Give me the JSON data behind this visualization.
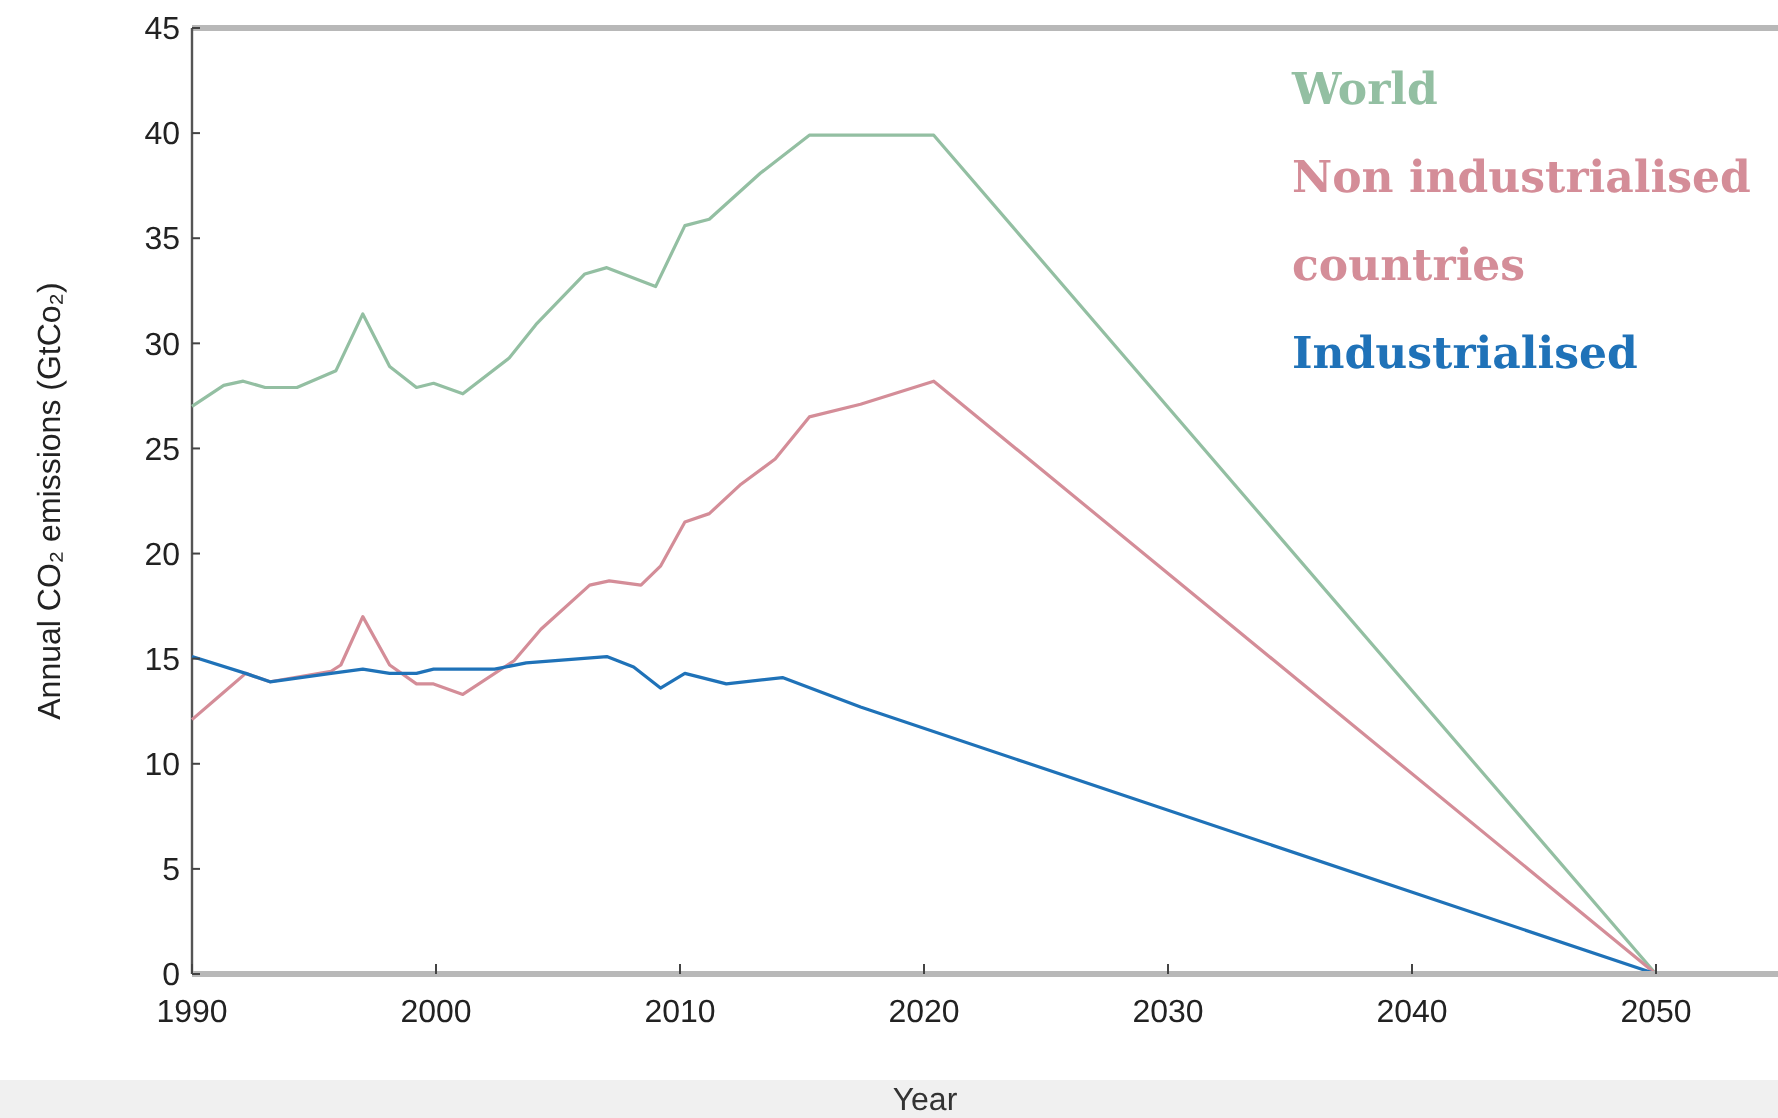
{
  "chart_data": {
    "type": "line",
    "xlabel": "Year",
    "ylabel": "Annual CO₂ emissions (GtCo₂)",
    "xlim": [
      1990,
      2055
    ],
    "xticks": [
      1990,
      2000,
      2010,
      2020,
      2030,
      2040,
      2050
    ],
    "ylim": [
      0,
      45
    ],
    "yticks": [
      0,
      5,
      10,
      15,
      20,
      25,
      30,
      35,
      40,
      45
    ],
    "legend": "top right",
    "grid": false,
    "series": [
      {
        "name": "World",
        "color": "#93bfa2",
        "x": [
          1990,
          1991.3,
          1992.1,
          1993,
          1994.3,
          1995.9,
          1997,
          1998.1,
          1999.2,
          1999.9,
          2001.1,
          2003,
          2004.1,
          2006.1,
          2007,
          2009,
          2010.2,
          2011.2,
          2013.3,
          2015.3,
          2020.4,
          2050
        ],
        "values": [
          27.0,
          28.0,
          28.2,
          27.9,
          27.9,
          28.7,
          31.4,
          28.9,
          27.9,
          28.1,
          27.6,
          29.3,
          30.9,
          33.3,
          33.6,
          32.7,
          35.6,
          35.9,
          38.1,
          39.9,
          39.9,
          0
        ]
      },
      {
        "name": "Non industrialised countries",
        "color": "#d48d98",
        "x": [
          1990,
          1991.1,
          1992.2,
          1993.2,
          1995.7,
          1996.1,
          1997,
          1998.1,
          1999.2,
          1999.9,
          2001.1,
          2003.2,
          2004.3,
          2006.3,
          2007.1,
          2008.4,
          2009.2,
          2010.2,
          2011.2,
          2012.5,
          2013.9,
          2015.3,
          2017.4,
          2020.4,
          2050
        ],
        "values": [
          12.1,
          13.2,
          14.3,
          13.9,
          14.4,
          14.7,
          17.0,
          14.7,
          13.8,
          13.8,
          13.3,
          14.9,
          16.4,
          18.5,
          18.7,
          18.5,
          19.4,
          21.5,
          21.9,
          23.3,
          24.5,
          26.5,
          27.1,
          28.2,
          0
        ]
      },
      {
        "name": "Industrialised",
        "color": "#1f72b8",
        "x": [
          1990,
          1992.2,
          1993.2,
          1995.7,
          1997,
          1998.1,
          1999.2,
          1999.9,
          2002.4,
          2003.7,
          2007,
          2008.1,
          2009.2,
          2010.2,
          2011.9,
          2014.2,
          2017.4,
          2050,
          2055
        ],
        "values": [
          15.1,
          14.3,
          13.9,
          14.3,
          14.5,
          14.3,
          14.3,
          14.5,
          14.5,
          14.8,
          15.1,
          14.6,
          13.6,
          14.3,
          13.8,
          14.1,
          12.7,
          0,
          0
        ]
      }
    ]
  }
}
